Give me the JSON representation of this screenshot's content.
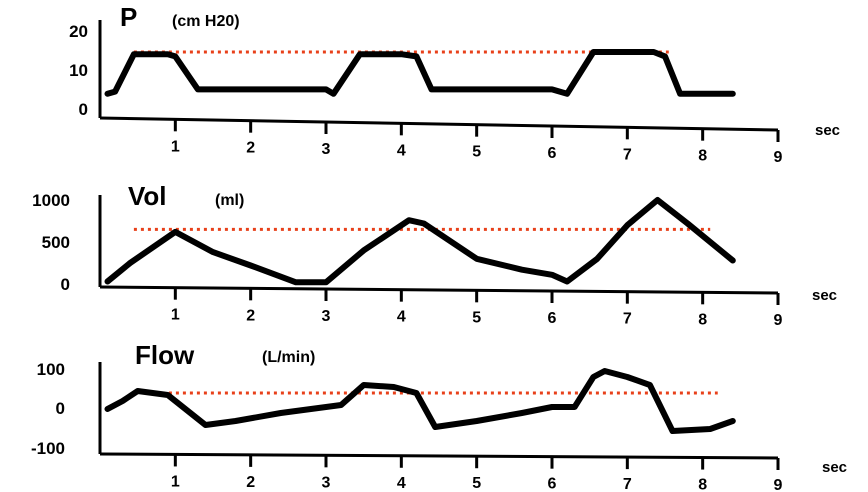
{
  "chart_data": [
    {
      "type": "line",
      "title": "P",
      "ylabel": "(cm H20)",
      "xlabel": "sec",
      "xlim": [
        0,
        9
      ],
      "ylim": [
        0,
        20
      ],
      "x_ticks": [
        "1",
        "2",
        "3",
        "4",
        "5",
        "6",
        "7",
        "8",
        "9"
      ],
      "y_ticks": [
        "20",
        "10",
        "0"
      ],
      "y_tick_values": [
        20,
        10,
        0
      ],
      "reference_line": 15,
      "reference_span": [
        0.45,
        7.55
      ],
      "series_color": "#000000",
      "reference_color": "#e8401a",
      "x": [
        0.1,
        0.2,
        0.45,
        0.9,
        1.0,
        1.3,
        2.0,
        3.0,
        3.1,
        3.45,
        4.0,
        4.2,
        4.4,
        5.0,
        6.0,
        6.2,
        6.55,
        7.35,
        7.5,
        7.7,
        8.4
      ],
      "y": [
        5.5,
        6.0,
        14.5,
        14.5,
        14.0,
        6.5,
        6.5,
        6.5,
        5.5,
        14.5,
        14.5,
        14.0,
        6.5,
        6.5,
        6.5,
        5.5,
        15.0,
        15.0,
        14.0,
        5.5,
        5.5
      ]
    },
    {
      "type": "line",
      "title": "Vol",
      "ylabel": "(ml)",
      "xlabel": "sec",
      "xlim": [
        0,
        9
      ],
      "ylim": [
        0,
        1000
      ],
      "x_ticks": [
        "1",
        "2",
        "3",
        "4",
        "5",
        "6",
        "7",
        "8",
        "9"
      ],
      "y_ticks": [
        "1000",
        "500",
        "0"
      ],
      "y_tick_values": [
        1000,
        500,
        0
      ],
      "reference_line": 650,
      "reference_span": [
        0.45,
        8.1
      ],
      "series_color": "#000000",
      "reference_color": "#e8401a",
      "x": [
        0.1,
        0.4,
        1.0,
        1.5,
        2.0,
        2.6,
        3.0,
        3.5,
        4.1,
        4.3,
        5.0,
        5.6,
        6.0,
        6.2,
        6.6,
        7.0,
        7.4,
        7.8,
        8.4
      ],
      "y": [
        30,
        250,
        620,
        380,
        220,
        20,
        20,
        400,
        760,
        720,
        300,
        170,
        110,
        30,
        300,
        700,
        1000,
        720,
        280
      ]
    },
    {
      "type": "line",
      "title": "Flow",
      "ylabel": "(L/min)",
      "xlabel": "sec",
      "xlim": [
        0,
        9
      ],
      "ylim": [
        -100,
        100
      ],
      "x_ticks": [
        "1",
        "2",
        "3",
        "4",
        "5",
        "6",
        "7",
        "8",
        "9"
      ],
      "y_ticks": [
        "100",
        "0",
        "-100"
      ],
      "y_tick_values": [
        100,
        0,
        -100
      ],
      "reference_line": 40,
      "reference_span": [
        0.45,
        8.2
      ],
      "series_color": "#000000",
      "reference_color": "#e8401a",
      "x": [
        0.1,
        0.3,
        0.5,
        0.9,
        1.4,
        1.8,
        2.4,
        3.0,
        3.2,
        3.5,
        3.9,
        4.2,
        4.45,
        5.0,
        5.6,
        6.0,
        6.3,
        6.55,
        6.7,
        7.0,
        7.3,
        7.6,
        8.1,
        8.4
      ],
      "y": [
        0,
        20,
        45,
        35,
        -40,
        -30,
        -10,
        5,
        10,
        60,
        55,
        40,
        -45,
        -30,
        -10,
        5,
        5,
        80,
        95,
        80,
        60,
        -55,
        -50,
        -30
      ]
    }
  ]
}
